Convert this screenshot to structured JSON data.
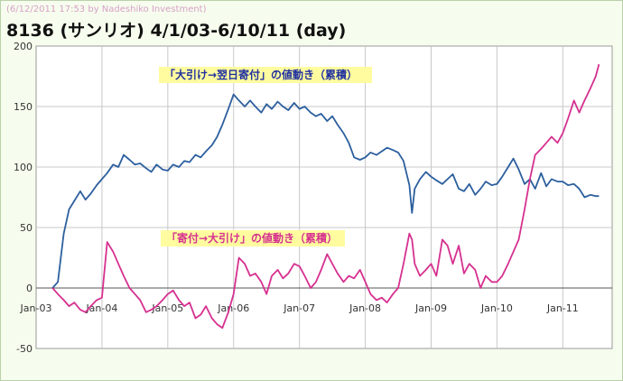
{
  "stamp": "(6/12/2011 17:53 by Nadeshiko Investment)",
  "title": "8136 (サンリオ)  4/1/03-6/10/11 (day)",
  "chart_data": {
    "type": "line",
    "ylim": [
      -50,
      200
    ],
    "yticks": [
      -50,
      0,
      50,
      100,
      150,
      200
    ],
    "xlim": [
      2003.0,
      2011.75
    ],
    "xticks": [
      {
        "label": "Jan-03",
        "x": 2003
      },
      {
        "label": "Jan-04",
        "x": 2004
      },
      {
        "label": "Jan-05",
        "x": 2005
      },
      {
        "label": "Jan-06",
        "x": 2006
      },
      {
        "label": "Jan-07",
        "x": 2007
      },
      {
        "label": "Jan-08",
        "x": 2008
      },
      {
        "label": "Jan-09",
        "x": 2009
      },
      {
        "label": "Jan-10",
        "x": 2010
      },
      {
        "label": "Jan-11",
        "x": 2011
      }
    ],
    "grid": true,
    "series": [
      {
        "name": "「大引け→翌日寄付」の値動き（累積）",
        "color": "#2c5f9e",
        "label_box": "#fffca0",
        "label_text": "#2030a0",
        "points": [
          [
            2003.25,
            0
          ],
          [
            2003.33,
            5
          ],
          [
            2003.42,
            45
          ],
          [
            2003.5,
            65
          ],
          [
            2003.58,
            72
          ],
          [
            2003.67,
            80
          ],
          [
            2003.75,
            73
          ],
          [
            2003.83,
            78
          ],
          [
            2003.92,
            85
          ],
          [
            2004.0,
            90
          ],
          [
            2004.08,
            95
          ],
          [
            2004.17,
            102
          ],
          [
            2004.25,
            100
          ],
          [
            2004.33,
            110
          ],
          [
            2004.42,
            106
          ],
          [
            2004.5,
            102
          ],
          [
            2004.58,
            103
          ],
          [
            2004.67,
            99
          ],
          [
            2004.75,
            96
          ],
          [
            2004.83,
            102
          ],
          [
            2004.92,
            98
          ],
          [
            2005.0,
            97
          ],
          [
            2005.08,
            102
          ],
          [
            2005.17,
            100
          ],
          [
            2005.25,
            105
          ],
          [
            2005.33,
            104
          ],
          [
            2005.42,
            110
          ],
          [
            2005.5,
            108
          ],
          [
            2005.58,
            113
          ],
          [
            2005.67,
            118
          ],
          [
            2005.75,
            125
          ],
          [
            2005.83,
            135
          ],
          [
            2005.92,
            148
          ],
          [
            2006.0,
            160
          ],
          [
            2006.08,
            155
          ],
          [
            2006.17,
            150
          ],
          [
            2006.25,
            155
          ],
          [
            2006.33,
            150
          ],
          [
            2006.42,
            145
          ],
          [
            2006.5,
            152
          ],
          [
            2006.58,
            148
          ],
          [
            2006.67,
            154
          ],
          [
            2006.75,
            150
          ],
          [
            2006.83,
            147
          ],
          [
            2006.92,
            153
          ],
          [
            2007.0,
            148
          ],
          [
            2007.08,
            150
          ],
          [
            2007.17,
            145
          ],
          [
            2007.25,
            142
          ],
          [
            2007.33,
            144
          ],
          [
            2007.42,
            138
          ],
          [
            2007.5,
            142
          ],
          [
            2007.58,
            135
          ],
          [
            2007.67,
            128
          ],
          [
            2007.75,
            120
          ],
          [
            2007.83,
            108
          ],
          [
            2007.92,
            106
          ],
          [
            2008.0,
            108
          ],
          [
            2008.08,
            112
          ],
          [
            2008.17,
            110
          ],
          [
            2008.25,
            113
          ],
          [
            2008.33,
            116
          ],
          [
            2008.42,
            114
          ],
          [
            2008.5,
            112
          ],
          [
            2008.58,
            105
          ],
          [
            2008.67,
            85
          ],
          [
            2008.71,
            62
          ],
          [
            2008.75,
            82
          ],
          [
            2008.83,
            90
          ],
          [
            2008.92,
            96
          ],
          [
            2009.0,
            92
          ],
          [
            2009.08,
            89
          ],
          [
            2009.17,
            86
          ],
          [
            2009.25,
            90
          ],
          [
            2009.33,
            94
          ],
          [
            2009.42,
            82
          ],
          [
            2009.5,
            80
          ],
          [
            2009.58,
            86
          ],
          [
            2009.67,
            77
          ],
          [
            2009.75,
            82
          ],
          [
            2009.83,
            88
          ],
          [
            2009.92,
            85
          ],
          [
            2010.0,
            86
          ],
          [
            2010.08,
            92
          ],
          [
            2010.17,
            100
          ],
          [
            2010.25,
            107
          ],
          [
            2010.33,
            98
          ],
          [
            2010.42,
            86
          ],
          [
            2010.5,
            90
          ],
          [
            2010.58,
            82
          ],
          [
            2010.67,
            95
          ],
          [
            2010.75,
            84
          ],
          [
            2010.83,
            90
          ],
          [
            2010.92,
            88
          ],
          [
            2011.0,
            88
          ],
          [
            2011.08,
            85
          ],
          [
            2011.17,
            86
          ],
          [
            2011.25,
            82
          ],
          [
            2011.33,
            75
          ],
          [
            2011.42,
            77
          ],
          [
            2011.5,
            76
          ],
          [
            2011.55,
            76
          ]
        ]
      },
      {
        "name": "「寄付→大引け」の値動き（累積）",
        "color": "#d6308f",
        "label_box": "#fffca0",
        "label_text": "#d6308f",
        "points": [
          [
            2003.25,
            0
          ],
          [
            2003.33,
            -5
          ],
          [
            2003.42,
            -10
          ],
          [
            2003.5,
            -15
          ],
          [
            2003.58,
            -12
          ],
          [
            2003.67,
            -18
          ],
          [
            2003.75,
            -20
          ],
          [
            2003.83,
            -15
          ],
          [
            2003.92,
            -10
          ],
          [
            2004.0,
            -8
          ],
          [
            2004.08,
            38
          ],
          [
            2004.17,
            30
          ],
          [
            2004.25,
            20
          ],
          [
            2004.33,
            10
          ],
          [
            2004.42,
            0
          ],
          [
            2004.5,
            -5
          ],
          [
            2004.58,
            -10
          ],
          [
            2004.67,
            -20
          ],
          [
            2004.75,
            -18
          ],
          [
            2004.83,
            -15
          ],
          [
            2004.92,
            -10
          ],
          [
            2005.0,
            -5
          ],
          [
            2005.08,
            -2
          ],
          [
            2005.17,
            -10
          ],
          [
            2005.25,
            -15
          ],
          [
            2005.33,
            -12
          ],
          [
            2005.42,
            -25
          ],
          [
            2005.5,
            -22
          ],
          [
            2005.58,
            -15
          ],
          [
            2005.67,
            -25
          ],
          [
            2005.75,
            -30
          ],
          [
            2005.83,
            -33
          ],
          [
            2005.92,
            -20
          ],
          [
            2006.0,
            -5
          ],
          [
            2006.08,
            25
          ],
          [
            2006.17,
            20
          ],
          [
            2006.25,
            10
          ],
          [
            2006.33,
            12
          ],
          [
            2006.42,
            5
          ],
          [
            2006.5,
            -5
          ],
          [
            2006.58,
            10
          ],
          [
            2006.67,
            15
          ],
          [
            2006.75,
            8
          ],
          [
            2006.83,
            12
          ],
          [
            2006.92,
            20
          ],
          [
            2007.0,
            18
          ],
          [
            2007.08,
            10
          ],
          [
            2007.17,
            0
          ],
          [
            2007.25,
            5
          ],
          [
            2007.33,
            15
          ],
          [
            2007.42,
            28
          ],
          [
            2007.5,
            20
          ],
          [
            2007.58,
            12
          ],
          [
            2007.67,
            5
          ],
          [
            2007.75,
            10
          ],
          [
            2007.83,
            8
          ],
          [
            2007.92,
            15
          ],
          [
            2008.0,
            5
          ],
          [
            2008.08,
            -5
          ],
          [
            2008.17,
            -10
          ],
          [
            2008.25,
            -8
          ],
          [
            2008.33,
            -12
          ],
          [
            2008.42,
            -5
          ],
          [
            2008.5,
            0
          ],
          [
            2008.58,
            20
          ],
          [
            2008.67,
            45
          ],
          [
            2008.71,
            40
          ],
          [
            2008.75,
            20
          ],
          [
            2008.83,
            10
          ],
          [
            2008.92,
            15
          ],
          [
            2009.0,
            20
          ],
          [
            2009.08,
            10
          ],
          [
            2009.17,
            40
          ],
          [
            2009.25,
            35
          ],
          [
            2009.33,
            20
          ],
          [
            2009.42,
            35
          ],
          [
            2009.5,
            12
          ],
          [
            2009.58,
            20
          ],
          [
            2009.67,
            15
          ],
          [
            2009.75,
            0
          ],
          [
            2009.83,
            10
          ],
          [
            2009.92,
            5
          ],
          [
            2010.0,
            5
          ],
          [
            2010.08,
            10
          ],
          [
            2010.17,
            20
          ],
          [
            2010.25,
            30
          ],
          [
            2010.33,
            40
          ],
          [
            2010.42,
            65
          ],
          [
            2010.5,
            90
          ],
          [
            2010.58,
            110
          ],
          [
            2010.67,
            115
          ],
          [
            2010.75,
            120
          ],
          [
            2010.83,
            125
          ],
          [
            2010.92,
            120
          ],
          [
            2011.0,
            128
          ],
          [
            2011.08,
            140
          ],
          [
            2011.17,
            155
          ],
          [
            2011.25,
            145
          ],
          [
            2011.33,
            155
          ],
          [
            2011.42,
            165
          ],
          [
            2011.5,
            175
          ],
          [
            2011.55,
            185
          ]
        ]
      }
    ]
  }
}
